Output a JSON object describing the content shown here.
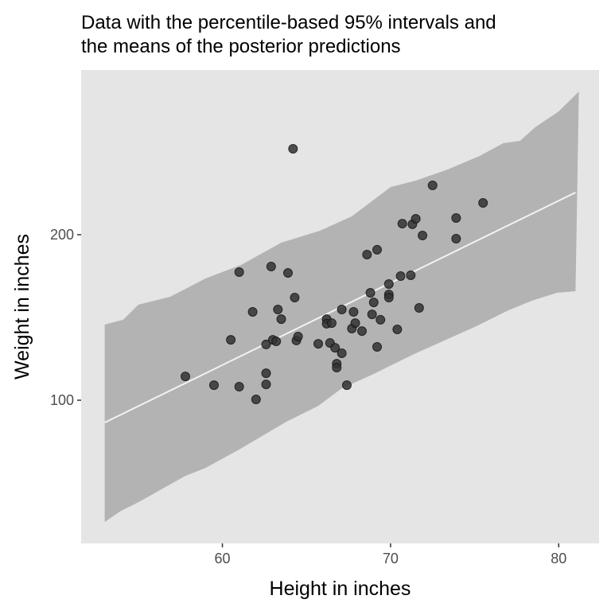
{
  "chart_data": {
    "type": "scatter",
    "title": "Data with the percentile-based 95% intervals and the means of the posterior predictions",
    "title_lines": [
      "Data with the percentile-based 95% intervals and",
      "the means of the posterior predictions"
    ],
    "xlabel": "Height in inches",
    "ylabel": "Weight in inches",
    "xlim": [
      51.6,
      82.4
    ],
    "ylim": [
      13.5,
      299.5
    ],
    "xticks": [
      60,
      70,
      80
    ],
    "yticks": [
      100,
      200
    ],
    "grid": false,
    "colors": {
      "panel": "#e5e5e5",
      "band": "#b3b3b3",
      "mean_line": "#f2f2f2",
      "points": "#333333"
    },
    "interval_band": {
      "upper": [
        [
          53.0,
          145.7
        ],
        [
          54.1,
          148.6
        ],
        [
          55.0,
          157.7
        ],
        [
          56.9,
          162.5
        ],
        [
          59.0,
          173.6
        ],
        [
          61.1,
          181.7
        ],
        [
          63.5,
          195.2
        ],
        [
          65.8,
          202.4
        ],
        [
          67.7,
          211.1
        ],
        [
          70.0,
          228.8
        ],
        [
          71.5,
          232.7
        ],
        [
          73.4,
          239.4
        ],
        [
          75.3,
          247.6
        ],
        [
          76.7,
          255.3
        ],
        [
          77.7,
          256.7
        ],
        [
          78.6,
          264.9
        ],
        [
          80.0,
          274.5
        ],
        [
          81.2,
          286.5
        ]
      ],
      "lower": [
        [
          53.0,
          26.4
        ],
        [
          53.9,
          32.7
        ],
        [
          55.1,
          38.9
        ],
        [
          57.8,
          54.3
        ],
        [
          59.0,
          59.1
        ],
        [
          61.0,
          70.2
        ],
        [
          63.8,
          87.0
        ],
        [
          65.7,
          96.6
        ],
        [
          67.1,
          107.2
        ],
        [
          69.0,
          115.9
        ],
        [
          71.4,
          127.9
        ],
        [
          73.2,
          136.1
        ],
        [
          75.1,
          144.7
        ],
        [
          77.0,
          154.3
        ],
        [
          78.4,
          160.1
        ],
        [
          79.9,
          164.9
        ],
        [
          81.0,
          165.9
        ]
      ]
    },
    "mean_line": [
      [
        53.0,
        86.5
      ],
      [
        81.0,
        225.5
      ]
    ],
    "points": [
      [
        57.8,
        114.4
      ],
      [
        59.5,
        109.1
      ],
      [
        60.5,
        136.5
      ],
      [
        61.0,
        177.4
      ],
      [
        61.0,
        108.2
      ],
      [
        61.8,
        153.4
      ],
      [
        62.0,
        100.5
      ],
      [
        62.6,
        133.7
      ],
      [
        62.6,
        109.6
      ],
      [
        62.6,
        116.3
      ],
      [
        62.9,
        180.8
      ],
      [
        63.0,
        136.5
      ],
      [
        63.2,
        135.6
      ],
      [
        63.3,
        154.8
      ],
      [
        63.5,
        149.0
      ],
      [
        63.9,
        176.9
      ],
      [
        64.2,
        251.9
      ],
      [
        64.3,
        162.0
      ],
      [
        64.4,
        136.1
      ],
      [
        64.5,
        138.5
      ],
      [
        65.7,
        134.1
      ],
      [
        66.2,
        149.0
      ],
      [
        66.2,
        146.2
      ],
      [
        66.4,
        134.6
      ],
      [
        66.5,
        146.6
      ],
      [
        66.7,
        131.7
      ],
      [
        66.8,
        122.1
      ],
      [
        66.8,
        119.7
      ],
      [
        67.1,
        154.8
      ],
      [
        67.1,
        128.4
      ],
      [
        67.4,
        109.1
      ],
      [
        67.7,
        143.3
      ],
      [
        67.8,
        153.4
      ],
      [
        67.9,
        146.6
      ],
      [
        68.3,
        141.8
      ],
      [
        68.6,
        188.0
      ],
      [
        68.8,
        164.9
      ],
      [
        68.9,
        151.9
      ],
      [
        69.0,
        159.1
      ],
      [
        69.2,
        190.9
      ],
      [
        69.2,
        132.2
      ],
      [
        69.4,
        148.6
      ],
      [
        69.9,
        170.2
      ],
      [
        69.9,
        163.9
      ],
      [
        69.9,
        162.0
      ],
      [
        70.4,
        142.8
      ],
      [
        70.6,
        175.0
      ],
      [
        70.7,
        206.7
      ],
      [
        71.2,
        175.5
      ],
      [
        71.3,
        206.3
      ],
      [
        71.5,
        209.6
      ],
      [
        71.7,
        155.8
      ],
      [
        71.9,
        199.5
      ],
      [
        72.5,
        229.8
      ],
      [
        73.9,
        210.1
      ],
      [
        73.9,
        197.6
      ],
      [
        75.5,
        219.2
      ]
    ]
  }
}
